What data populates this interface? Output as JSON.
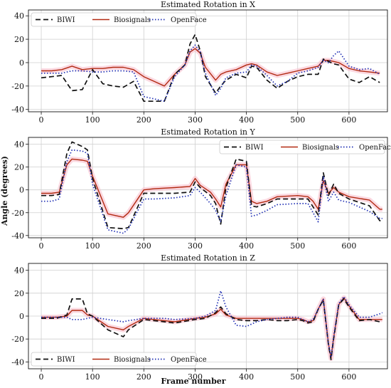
{
  "figure": {
    "xlabel": "Frame number",
    "ylabel": "Angle (degrees)"
  },
  "colors": {
    "BIWI": "#111111",
    "Biosignals": "#b22a12",
    "OpenFace": "#1f2fb4",
    "band": "#f7b9c8",
    "grid": "#cfcfcf"
  },
  "chart_data": [
    {
      "type": "line",
      "title": "Estimated Rotation in X",
      "xlim": [
        -25,
        675
      ],
      "ylim": [
        -42,
        45
      ],
      "xticks": [
        0,
        100,
        200,
        300,
        400,
        500,
        600
      ],
      "yticks": [
        -40,
        -20,
        0,
        20,
        40
      ],
      "grid": true,
      "legend": "top-left",
      "x": [
        0,
        20,
        40,
        60,
        80,
        100,
        120,
        140,
        160,
        180,
        200,
        220,
        240,
        260,
        280,
        290,
        300,
        310,
        320,
        340,
        350,
        360,
        380,
        400,
        410,
        420,
        440,
        460,
        480,
        500,
        520,
        540,
        550,
        560,
        570,
        580,
        600,
        620,
        640,
        660
      ],
      "series": [
        {
          "name": "BIWI",
          "style": "dashed",
          "values": [
            -13,
            -12,
            -11,
            -24,
            -23,
            -6,
            -18,
            -20,
            -21,
            -16,
            -33,
            -33,
            -33,
            -10,
            -2,
            16,
            24,
            10,
            -12,
            -26,
            -20,
            -15,
            -10,
            -13,
            -3,
            -4,
            -15,
            -22,
            -16,
            -12,
            -10,
            -10,
            3,
            1,
            -1,
            -2,
            -14,
            -17,
            -12,
            -17
          ]
        },
        {
          "name": "Biosignals",
          "style": "solid",
          "values": [
            -7,
            -7,
            -6,
            -3,
            -6,
            -5,
            -5,
            -4,
            -4,
            -6,
            -12,
            -16,
            -20,
            -10,
            -2,
            9,
            12,
            8,
            -4,
            -15,
            -10,
            -8,
            -6,
            -2,
            -1,
            -2,
            -8,
            -11,
            -9,
            -7,
            -5,
            -3,
            2,
            2,
            1,
            0,
            -5,
            -7,
            -8,
            -9
          ]
        },
        {
          "name": "OpenFace",
          "style": "dotted",
          "values": [
            -9,
            -9,
            -9,
            -7,
            -7,
            -8,
            -8,
            -7,
            -7,
            -8,
            -29,
            -31,
            -33,
            -12,
            -2,
            10,
            15,
            9,
            -9,
            -28,
            -22,
            -13,
            -9,
            -8,
            -2,
            -3,
            -11,
            -20,
            -16,
            -9,
            -7,
            -4,
            2,
            0,
            6,
            10,
            -3,
            -6,
            -5,
            -10
          ]
        }
      ]
    },
    {
      "type": "line",
      "title": "Estimated Rotation in Y",
      "xlim": [
        -25,
        675
      ],
      "ylim": [
        -42,
        46
      ],
      "xticks": [
        0,
        100,
        200,
        300,
        400,
        500,
        600
      ],
      "yticks": [
        -40,
        -20,
        0,
        20,
        40
      ],
      "grid": true,
      "legend": "top-right",
      "x": [
        0,
        20,
        35,
        50,
        60,
        80,
        90,
        100,
        130,
        160,
        170,
        200,
        220,
        260,
        290,
        300,
        310,
        330,
        340,
        350,
        360,
        380,
        400,
        410,
        420,
        440,
        460,
        500,
        520,
        530,
        540,
        550,
        560,
        570,
        580,
        600,
        640,
        660,
        665
      ],
      "series": [
        {
          "name": "BIWI",
          "style": "dashed",
          "values": [
            -5,
            -5,
            -4,
            32,
            42,
            38,
            35,
            10,
            -33,
            -34,
            -33,
            -3,
            -3,
            -3,
            -2,
            7,
            2,
            -5,
            -12,
            -30,
            2,
            27,
            25,
            -14,
            -15,
            -12,
            -8,
            -8,
            -8,
            -15,
            -22,
            15,
            -5,
            5,
            -3,
            -8,
            -14,
            -27,
            -27
          ]
        },
        {
          "name": "Biosignals",
          "style": "solid",
          "values": [
            -3,
            -3,
            -2,
            22,
            27,
            26,
            25,
            12,
            -21,
            -24,
            -20,
            0,
            1,
            2,
            3,
            10,
            4,
            -2,
            -8,
            -15,
            5,
            22,
            22,
            -10,
            -12,
            -10,
            -6,
            -5,
            -6,
            -10,
            -17,
            8,
            -3,
            2,
            -2,
            -6,
            -9,
            -17,
            -17
          ]
        },
        {
          "name": "OpenFace",
          "style": "dotted",
          "values": [
            -10,
            -10,
            -8,
            25,
            35,
            34,
            32,
            5,
            -35,
            -38,
            -34,
            -8,
            -8,
            -7,
            -5,
            2,
            -2,
            -12,
            -18,
            -28,
            -5,
            22,
            20,
            -23,
            -22,
            -18,
            -13,
            -12,
            -12,
            -20,
            -28,
            12,
            -10,
            -2,
            -9,
            -11,
            -19,
            -25,
            -25
          ]
        }
      ]
    },
    {
      "type": "line",
      "title": "Estimated Rotation in Z",
      "xlim": [
        -25,
        675
      ],
      "ylim": [
        -46,
        46
      ],
      "xticks": [
        0,
        100,
        200,
        300,
        400,
        500,
        600
      ],
      "yticks": [
        -40,
        -20,
        0,
        20,
        40
      ],
      "grid": true,
      "legend": "bottom-left",
      "x": [
        0,
        30,
        50,
        60,
        80,
        90,
        100,
        130,
        160,
        170,
        200,
        240,
        260,
        300,
        320,
        340,
        350,
        360,
        380,
        400,
        420,
        440,
        460,
        480,
        500,
        510,
        520,
        530,
        540,
        550,
        560,
        565,
        570,
        580,
        590,
        600,
        620,
        640,
        660,
        665
      ],
      "series": [
        {
          "name": "BIWI",
          "style": "dashed",
          "values": [
            -2,
            -2,
            1,
            15,
            15,
            2,
            0,
            -12,
            -18,
            -12,
            -3,
            -5,
            -6,
            -3,
            -2,
            3,
            8,
            2,
            -3,
            -4,
            -4,
            -3,
            -4,
            -4,
            -3,
            -4,
            -6,
            -5,
            6,
            14,
            -25,
            -38,
            -20,
            10,
            15,
            8,
            -4,
            -3,
            -5,
            -5
          ]
        },
        {
          "name": "Biosignals",
          "style": "solid",
          "values": [
            -1,
            -1,
            0,
            5,
            5,
            1,
            0,
            -9,
            -12,
            -9,
            -2,
            -4,
            -5,
            -2,
            -1,
            2,
            6,
            1,
            -2,
            -2,
            -2,
            -2,
            -2,
            -2,
            -2,
            -3,
            -5,
            -4,
            6,
            15,
            -24,
            -37,
            -19,
            10,
            16,
            9,
            -3,
            -3,
            -3,
            -3
          ]
        },
        {
          "name": "OpenFace",
          "style": "dotted",
          "values": [
            -1,
            -1,
            -1,
            -3,
            -3,
            -2,
            -1,
            -3,
            -5,
            -4,
            -2,
            -2,
            -3,
            -2,
            0,
            5,
            22,
            8,
            -8,
            -9,
            -5,
            -3,
            -2,
            -1,
            -1,
            -3,
            -5,
            -3,
            6,
            15,
            -24,
            -36,
            -18,
            11,
            17,
            10,
            -1,
            -1,
            2,
            3
          ]
        }
      ]
    }
  ]
}
